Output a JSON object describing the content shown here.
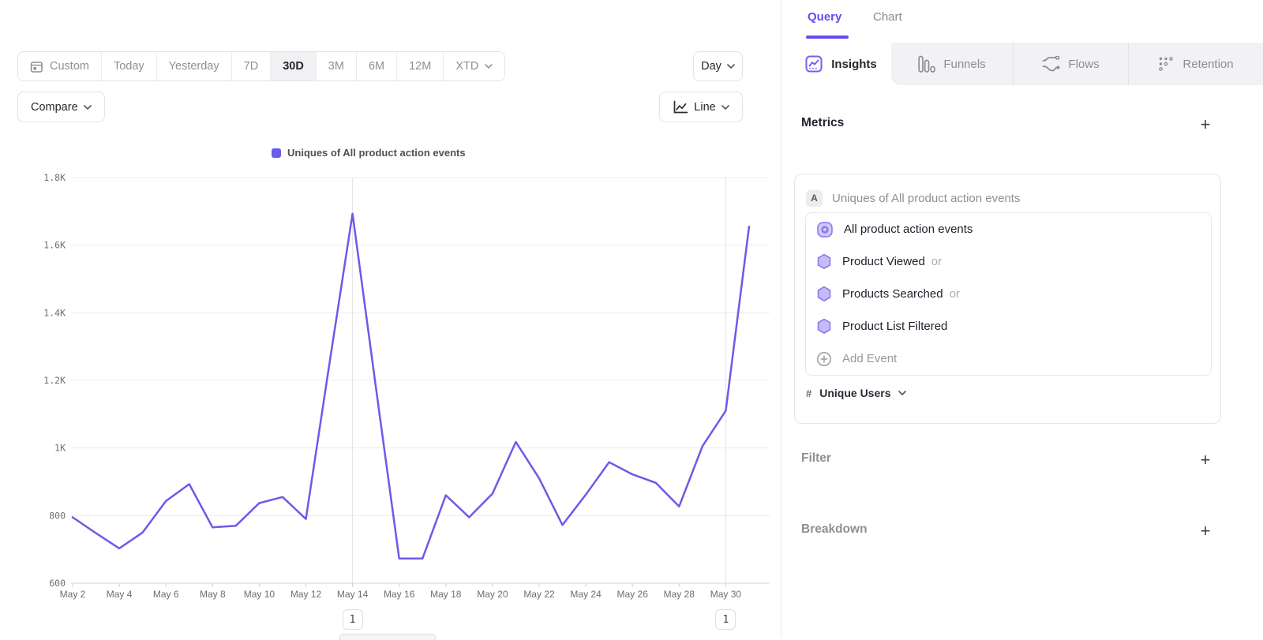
{
  "toolbar": {
    "date_ranges": [
      "Custom",
      "Today",
      "Yesterday",
      "7D",
      "30D",
      "3M",
      "6M",
      "12M",
      "XTD"
    ],
    "selected_range": "30D",
    "granularity_button": "Day",
    "compare_button": "Compare",
    "chart_type_button": "Line"
  },
  "chart_data": {
    "type": "line",
    "legend_position": "top-center",
    "grid": true,
    "ylim": [
      600,
      1800
    ],
    "y_ticks": [
      {
        "v": 1800,
        "label": "1.8K"
      },
      {
        "v": 1600,
        "label": "1.6K"
      },
      {
        "v": 1400,
        "label": "1.4K"
      },
      {
        "v": 1200,
        "label": "1.2K"
      },
      {
        "v": 1000,
        "label": "1K"
      },
      {
        "v": 800,
        "label": "800"
      },
      {
        "v": 600,
        "label": "600"
      }
    ],
    "x": [
      "May 2",
      "May 3",
      "May 4",
      "May 5",
      "May 6",
      "May 7",
      "May 8",
      "May 9",
      "May 10",
      "May 11",
      "May 12",
      "May 13",
      "May 14",
      "May 15",
      "May 16",
      "May 17",
      "May 18",
      "May 19",
      "May 20",
      "May 21",
      "May 22",
      "May 23",
      "May 24",
      "May 25",
      "May 26",
      "May 27",
      "May 28",
      "May 29",
      "May 30",
      "May 31"
    ],
    "x_tick_every": 2,
    "series": [
      {
        "name": "Uniques of All product action events",
        "color": "#6a5be9",
        "values": [
          795,
          748,
          703,
          750,
          843,
          893,
          765,
          770,
          837,
          855,
          790,
          1245,
          1693,
          1180,
          673,
          673,
          860,
          795,
          865,
          1018,
          910,
          772,
          862,
          958,
          922,
          897,
          827,
          1005,
          1110,
          1655
        ]
      }
    ],
    "annotations": [
      {
        "x_index": 12,
        "label": "1"
      },
      {
        "x_index": 28,
        "label": "1"
      }
    ]
  },
  "panel": {
    "view_tabs": {
      "query": "Query",
      "chart": "Chart",
      "active": "Query"
    },
    "report_tabs": [
      {
        "label": "Insights",
        "active": true
      },
      {
        "label": "Funnels",
        "active": false
      },
      {
        "label": "Flows",
        "active": false
      },
      {
        "label": "Retention",
        "active": false
      }
    ],
    "metrics": {
      "title": "Metrics",
      "add_label": "+",
      "series_letter": "A",
      "series_label": "Uniques of All product action events",
      "events": [
        {
          "name": "All product action events",
          "operator": ""
        },
        {
          "name": "Product Viewed",
          "operator": "or"
        },
        {
          "name": "Products Searched",
          "operator": "or"
        },
        {
          "name": "Product List Filtered",
          "operator": ""
        }
      ],
      "add_event_label": "Add Event",
      "aggregation": {
        "symbol": "#",
        "label": "Unique Users"
      }
    },
    "filter": {
      "title": "Filter",
      "add_label": "+"
    },
    "breakdown": {
      "title": "Breakdown",
      "add_label": "+"
    }
  },
  "colors": {
    "accent": "#634df2",
    "line": "#6a5be9",
    "hexagon_fill": "#c4bcf7",
    "hexagon_stroke": "#8474ee"
  }
}
